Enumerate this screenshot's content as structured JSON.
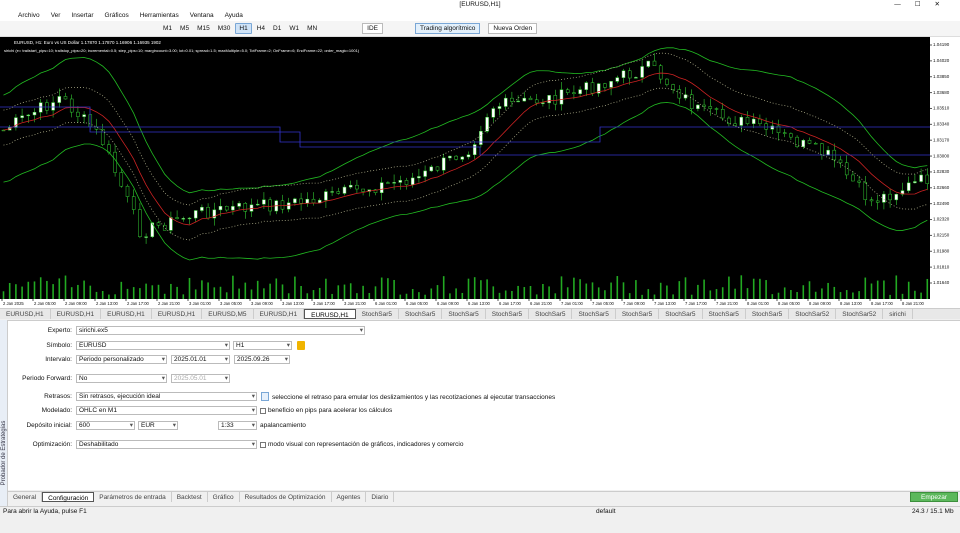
{
  "window": {
    "title": "[EURUSD,H1]"
  },
  "menu": [
    "Archivo",
    "Ver",
    "Insertar",
    "Gráficos",
    "Herramientas",
    "Ventana",
    "Ayuda"
  ],
  "toolbar": {
    "timeframes": [
      "M1",
      "M5",
      "M15",
      "M30",
      "H1",
      "H4",
      "D1",
      "W1",
      "MN"
    ],
    "ide": "IDE",
    "algo_trading": "Trading algorítmico",
    "new_order": "Nueva Orden"
  },
  "chart": {
    "header": "EURUSD, H1: Euro vs US Dollar 1.17870 1.17870 1.16906 1.16935 1902",
    "params": "sirichi (e= trailstart_pips=10; trailstop_pips=20; incremental=0.5; step_pips=10; margincount=3.00; lot=0.01; spread=1.5; maxMultiple=5.0; TotFrame=2; OnFrame=6; EndFrame=22; order_magic=1001)",
    "price_labels": [
      "1.04190",
      "1.04020",
      "1.03850",
      "1.03680",
      "1.03510",
      "1.03340",
      "1.03170",
      "1.03000",
      "1.02830",
      "1.02660",
      "1.02490",
      "1.02320",
      "1.02150",
      "1.01980",
      "1.01810",
      "1.01640"
    ],
    "time_labels": [
      "2 Jan 2025",
      "2 Jan 05:00",
      "2 Jan 09:00",
      "2 Jan 13:00",
      "2 Jan 17:00",
      "2 Jan 21:00",
      "3 Jan 01:00",
      "3 Jan 05:00",
      "3 Jan 09:00",
      "3 Jan 13:00",
      "3 Jan 17:00",
      "3 Jan 21:00",
      "6 Jan 01:00",
      "6 Jan 05:00",
      "6 Jan 09:00",
      "6 Jan 13:00",
      "6 Jan 17:00",
      "6 Jan 21:00",
      "7 Jan 01:00",
      "7 Jan 05:00",
      "7 Jan 09:00",
      "7 Jan 13:00",
      "7 Jan 17:00",
      "7 Jan 21:00",
      "8 Jan 01:00",
      "8 Jan 05:00",
      "8 Jan 09:00",
      "8 Jan 13:00",
      "8 Jan 17:00",
      "8 Jan 21:00"
    ]
  },
  "chart_tabs": [
    "EURUSD,H1",
    "EURUSD,H1",
    "EURUSD,H1",
    "EURUSD,H1",
    "EURUSD,M5",
    "EURUSD,H1",
    "EURUSD,H1",
    "StochSar5",
    "StochSar5",
    "StochSar5",
    "StochSar5",
    "StochSar5",
    "StochSar5",
    "StochSar5",
    "StochSar5",
    "StochSar5",
    "StochSar5",
    "StochSar52",
    "StochSar52",
    "sirichi"
  ],
  "tester": {
    "side_label": "Probador de Estrategias",
    "expert": {
      "label": "Experto:",
      "value": "sirichi.ex5"
    },
    "symbol": {
      "label": "Símbolo:",
      "value": "EURUSD",
      "timeframe": "H1"
    },
    "interval": {
      "label": "Intervalo:",
      "value": "Periodo personalizado",
      "from": "2025.01.01",
      "to": "2025.09.26"
    },
    "forward": {
      "label": "Periodo Forward:",
      "value": "No",
      "date": "2025.05.01"
    },
    "delays": {
      "label": "Retrasos:",
      "value": "Sin retrasos, ejecución ideal",
      "hint": "seleccione el retraso para emular los deslizamientos y las recotizaciones al ejecutar transacciones"
    },
    "modeling": {
      "label": "Modelado:",
      "value": "OHLC en M1",
      "option": "beneficio en pips para acelerar los cálculos"
    },
    "deposit": {
      "label": "Depósito inicial:",
      "value": "600",
      "currency": "EUR",
      "leverage": "1:33",
      "leverage_label": "apalancamiento"
    },
    "optimization": {
      "label": "Optimización:",
      "value": "Deshabilitado",
      "option": "modo visual con representación de gráficos, indicadores y comercio"
    }
  },
  "bottom_tabs": [
    "General",
    "Configuración",
    "Parámetros de entrada",
    "Backtest",
    "Gráfico",
    "Resultados de Optimización",
    "Agentes",
    "Diario"
  ],
  "start_button": "Empezar",
  "status": {
    "help": "Para abrir la Ayuda, pulse F1",
    "profile": "default",
    "memory": "24.3 / 15.1 Mb"
  }
}
